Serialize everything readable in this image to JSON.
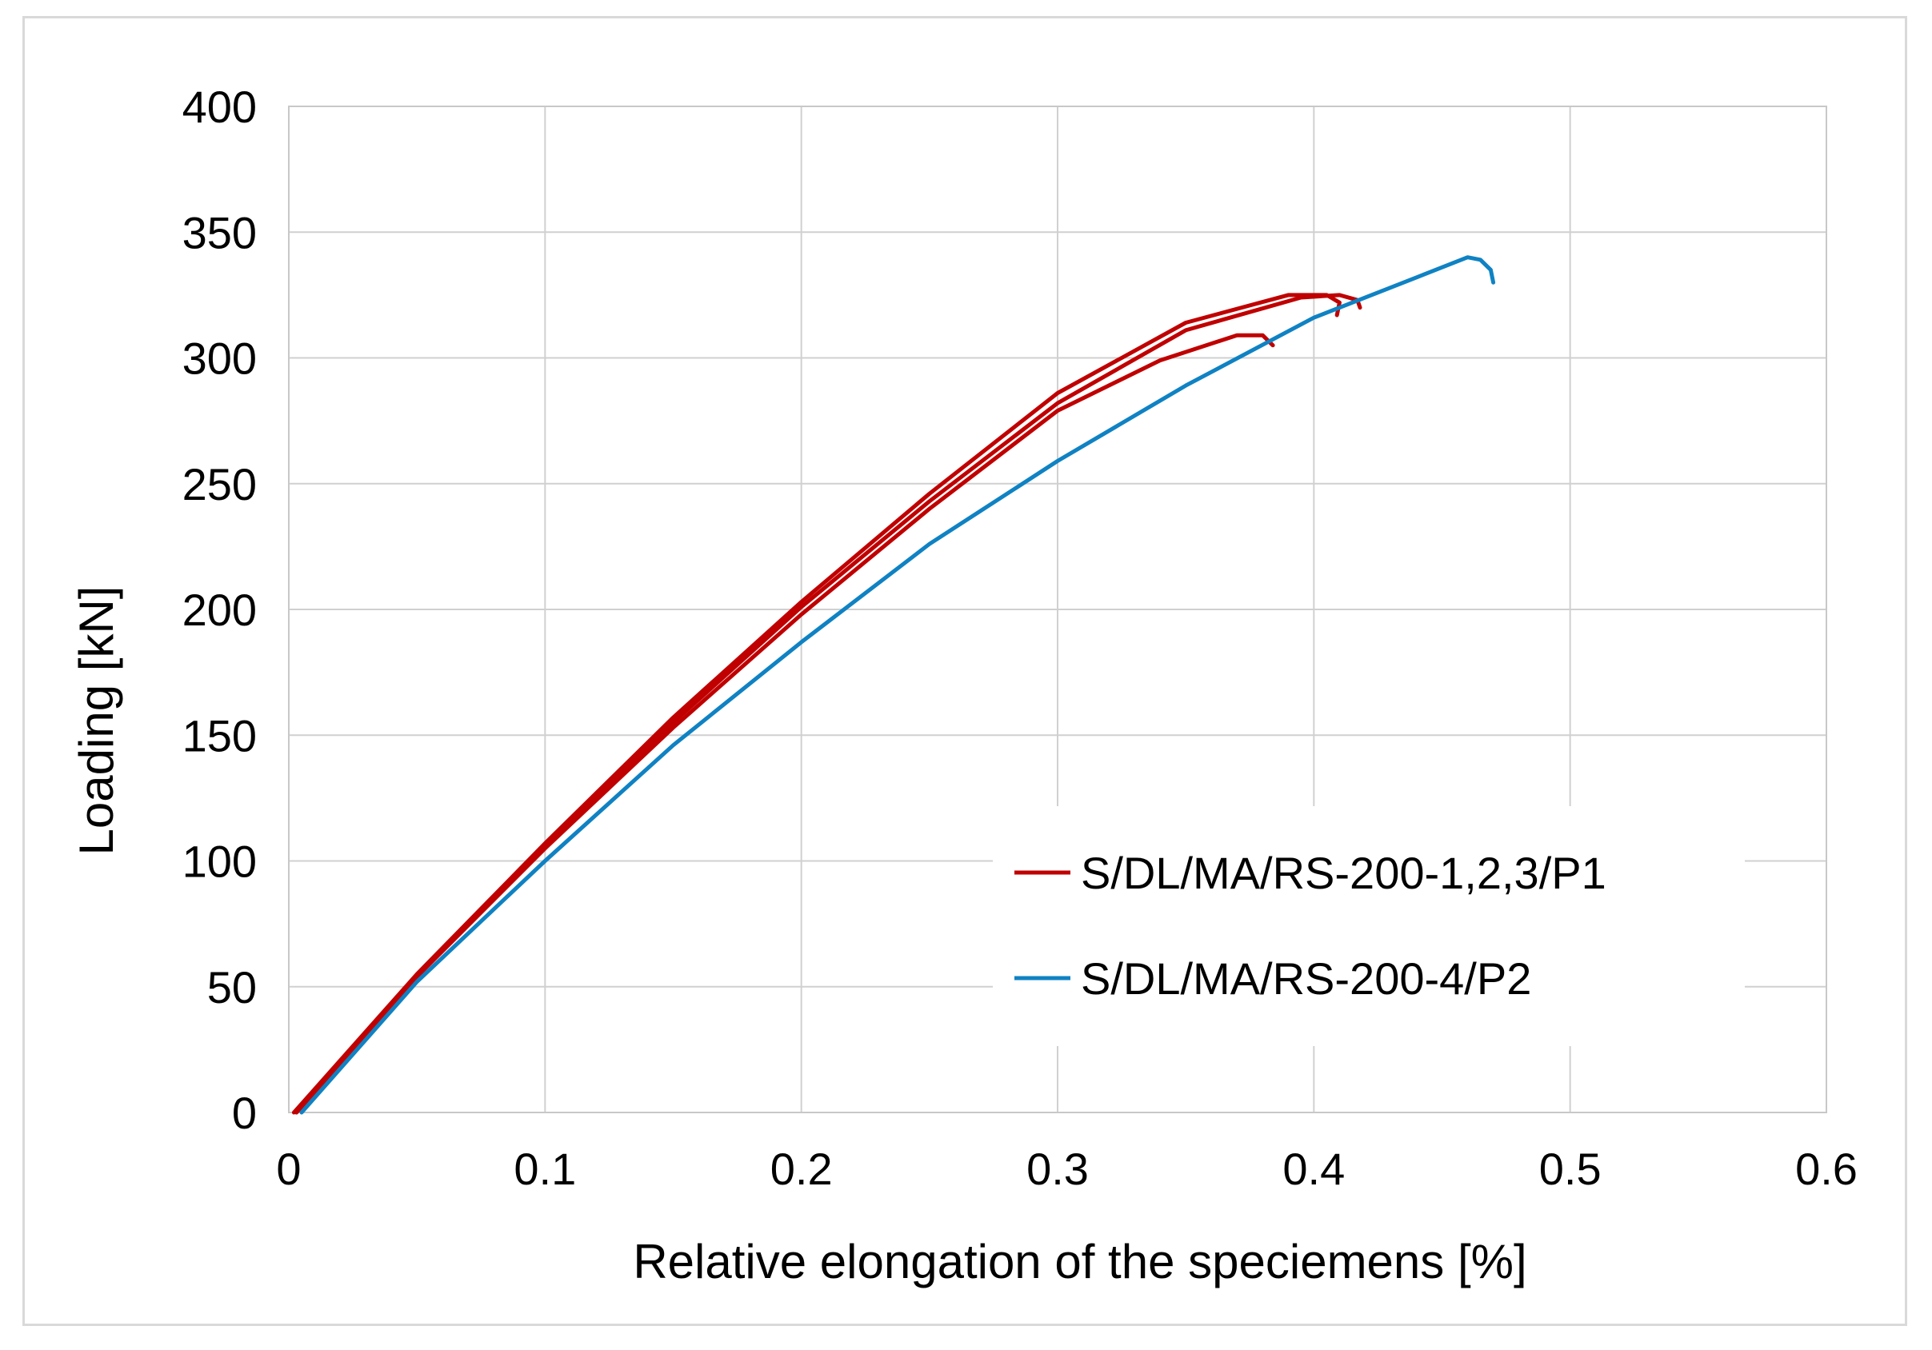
{
  "chart_data": {
    "type": "line",
    "title": "",
    "xlabel": "Relative elongation of the speciemens [%]",
    "ylabel": "Loading [kN]",
    "xlim": [
      0,
      0.6
    ],
    "ylim": [
      0,
      400
    ],
    "xticks": [
      0,
      0.1,
      0.2,
      0.3,
      0.4,
      0.5,
      0.6
    ],
    "xtick_labels": [
      "0",
      "0.1",
      "0.2",
      "0.3",
      "0.4",
      "0.5",
      "0.6"
    ],
    "yticks": [
      0,
      50,
      100,
      150,
      200,
      250,
      300,
      350,
      400
    ],
    "ytick_labels": [
      "0",
      "50",
      "100",
      "150",
      "200",
      "250",
      "300",
      "350",
      "400"
    ],
    "grid": true,
    "legend_position": "lower-right",
    "legend": [
      {
        "label": "S/DL/MA/RS-200-1,2,3/P1",
        "color": "#c00000"
      },
      {
        "label": "S/DL/MA/RS-200-4/P2",
        "color": "#0f82c3"
      }
    ],
    "series": [
      {
        "name": "S/DL/MA/RS-200-1,2,3/P1 (specimen 1)",
        "legend_group": "S/DL/MA/RS-200-1,2,3/P1",
        "color": "#c00000",
        "x": [
          0.002,
          0.05,
          0.1,
          0.15,
          0.2,
          0.25,
          0.3,
          0.35,
          0.39,
          0.405,
          0.41,
          0.409
        ],
        "y": [
          0,
          55,
          107,
          157,
          203,
          246,
          286,
          314,
          325,
          325,
          322,
          317
        ]
      },
      {
        "name": "S/DL/MA/RS-200-1,2,3/P1 (specimen 2)",
        "legend_group": "S/DL/MA/RS-200-1,2,3/P1",
        "color": "#c00000",
        "x": [
          0.003,
          0.05,
          0.1,
          0.15,
          0.2,
          0.25,
          0.3,
          0.35,
          0.395,
          0.41,
          0.417,
          0.418
        ],
        "y": [
          0,
          54,
          106,
          155,
          201,
          243,
          282,
          311,
          324,
          325,
          323,
          320
        ]
      },
      {
        "name": "S/DL/MA/RS-200-1,2,3/P1 (specimen 3)",
        "legend_group": "S/DL/MA/RS-200-1,2,3/P1",
        "color": "#c00000",
        "x": [
          0.003,
          0.05,
          0.1,
          0.15,
          0.2,
          0.25,
          0.3,
          0.34,
          0.37,
          0.38,
          0.384
        ],
        "y": [
          0,
          54,
          105,
          153,
          198,
          240,
          279,
          299,
          309,
          309,
          305
        ]
      },
      {
        "name": "S/DL/MA/RS-200-4/P2",
        "legend_group": "S/DL/MA/RS-200-4/P2",
        "color": "#0f82c3",
        "x": [
          0.005,
          0.05,
          0.1,
          0.15,
          0.2,
          0.25,
          0.3,
          0.35,
          0.4,
          0.44,
          0.46,
          0.465,
          0.469,
          0.47
        ],
        "y": [
          0,
          52,
          100,
          146,
          187,
          226,
          259,
          289,
          316,
          332,
          340,
          339,
          335,
          330
        ]
      }
    ]
  }
}
